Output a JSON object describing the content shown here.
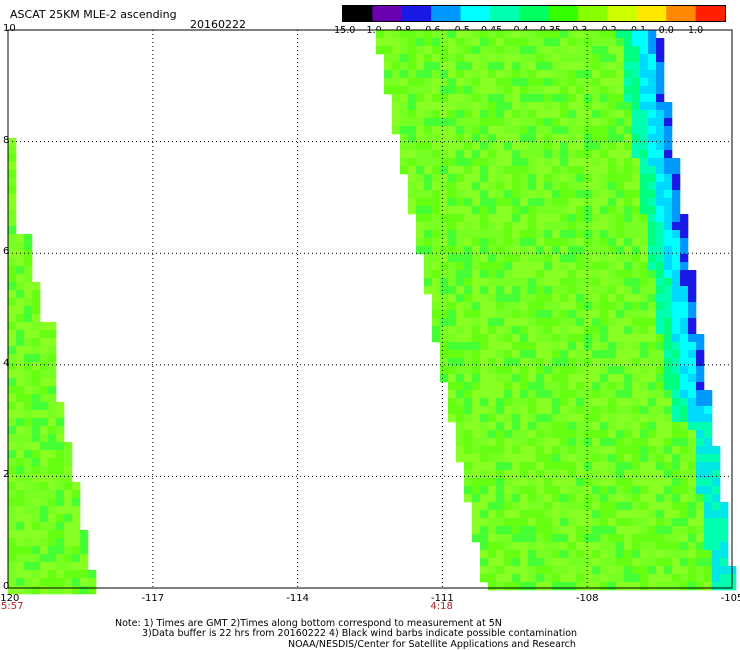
{
  "header": {
    "title": "ASCAT 25KM MLE-2 ascending",
    "date": "20160222"
  },
  "colorbar": {
    "labels": [
      "-15.0",
      "-1.0",
      "-0.8",
      "-0.6",
      "-0.5",
      "-0.45",
      "-0.4",
      "-0.35",
      "-0.3",
      "-0.2",
      "-0.1",
      "0.0",
      "1.0"
    ],
    "colors": [
      "#000000",
      "#6a00b0",
      "#1a1ae6",
      "#0099ff",
      "#00ffff",
      "#00ffb0",
      "#00ff60",
      "#33ff00",
      "#88ff00",
      "#ccff00",
      "#ffe800",
      "#ff8800",
      "#ff2000"
    ]
  },
  "axes": {
    "x_ticks": [
      "-120",
      "-117",
      "-114",
      "-111",
      "-108",
      "-105"
    ],
    "y_ticks": [
      "0",
      "2",
      "4",
      "6",
      "8",
      "10"
    ],
    "xlim": [
      -120,
      -105
    ],
    "ylim": [
      0,
      10
    ]
  },
  "times": [
    {
      "label": "5:57",
      "lon": -120
    },
    {
      "label": "4:18",
      "lon": -111
    }
  ],
  "notes": [
    "Note: 1) Times are GMT 2)Times along bottom correspond to measurement at 5N",
    "3)Data buffer is 22 hrs from 20160222 4) Black wind barbs indicate possible contamination",
    "NOAA/NESDIS/Center for Satellite Applications and Research"
  ]
}
